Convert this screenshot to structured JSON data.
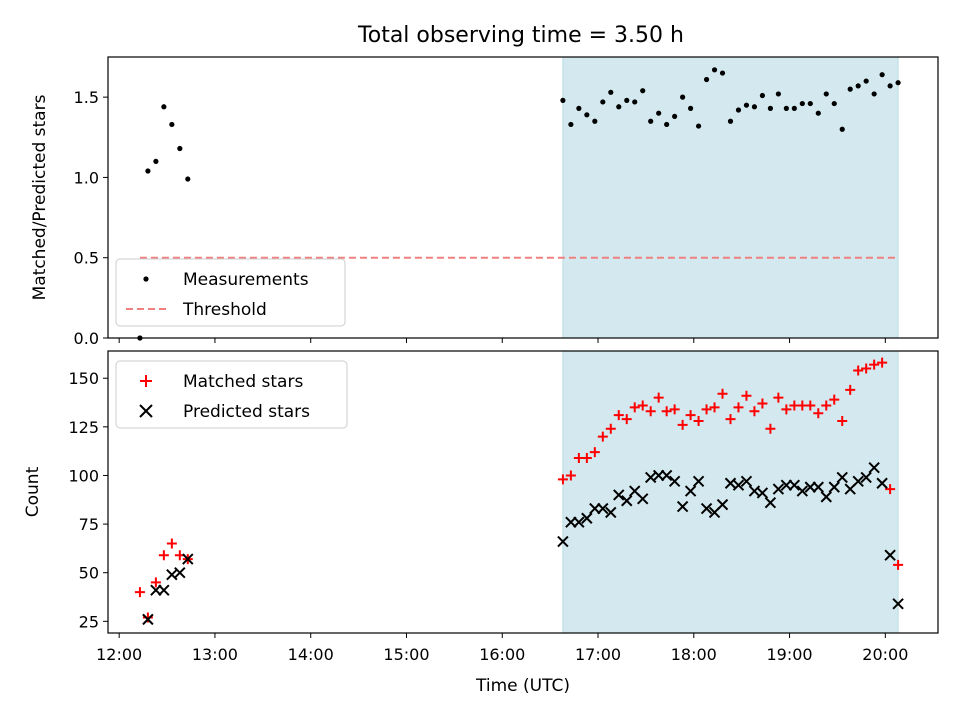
{
  "figure_title": "Total observing time = 3.50 h",
  "colors": {
    "shade": "#d3e9ef",
    "measure": "#000000",
    "threshold": "#f08080",
    "matched": "#ff0000",
    "predicted": "#000000"
  },
  "chart_data": [
    {
      "type": "scatter",
      "title": "Total observing time = 3.50 h",
      "xlabel": "",
      "ylabel": "Matched/Predicted stars",
      "xlim": [
        "11:53",
        "20:33"
      ],
      "ylim": [
        0,
        1.75
      ],
      "yticks": [
        "0.0",
        "0.5",
        "1.0",
        "1.5"
      ],
      "xticks": [
        "12:00",
        "13:00",
        "14:00",
        "15:00",
        "16:00",
        "17:00",
        "18:00",
        "19:00",
        "20:00"
      ],
      "tick_labels_visible_x": false,
      "shaded_interval": {
        "x": [
          "16:38",
          "20:08"
        ]
      },
      "legend": {
        "placement": "lower-left",
        "entries": [
          "Measurements",
          "Threshold"
        ]
      },
      "series": [
        {
          "name": "Measurements",
          "marker": "dot",
          "points": [
            {
              "x": "12:13",
              "y": 0.0
            },
            {
              "x": "12:18",
              "y": 1.04
            },
            {
              "x": "12:23",
              "y": 1.1
            },
            {
              "x": "12:28",
              "y": 1.44
            },
            {
              "x": "12:33",
              "y": 1.33
            },
            {
              "x": "12:38",
              "y": 1.18
            },
            {
              "x": "12:43",
              "y": 0.99
            },
            {
              "x": "16:38",
              "y": 1.48
            },
            {
              "x": "16:43",
              "y": 1.33
            },
            {
              "x": "16:48",
              "y": 1.43
            },
            {
              "x": "16:53",
              "y": 1.39
            },
            {
              "x": "16:58",
              "y": 1.35
            },
            {
              "x": "17:03",
              "y": 1.47
            },
            {
              "x": "17:08",
              "y": 1.53
            },
            {
              "x": "17:13",
              "y": 1.44
            },
            {
              "x": "17:18",
              "y": 1.48
            },
            {
              "x": "17:23",
              "y": 1.47
            },
            {
              "x": "17:28",
              "y": 1.54
            },
            {
              "x": "17:33",
              "y": 1.35
            },
            {
              "x": "17:38",
              "y": 1.4
            },
            {
              "x": "17:43",
              "y": 1.33
            },
            {
              "x": "17:48",
              "y": 1.38
            },
            {
              "x": "17:53",
              "y": 1.5
            },
            {
              "x": "17:58",
              "y": 1.43
            },
            {
              "x": "18:03",
              "y": 1.32
            },
            {
              "x": "18:08",
              "y": 1.61
            },
            {
              "x": "18:13",
              "y": 1.67
            },
            {
              "x": "18:18",
              "y": 1.65
            },
            {
              "x": "18:23",
              "y": 1.35
            },
            {
              "x": "18:28",
              "y": 1.42
            },
            {
              "x": "18:33",
              "y": 1.45
            },
            {
              "x": "18:38",
              "y": 1.44
            },
            {
              "x": "18:43",
              "y": 1.51
            },
            {
              "x": "18:48",
              "y": 1.43
            },
            {
              "x": "18:53",
              "y": 1.52
            },
            {
              "x": "18:58",
              "y": 1.43
            },
            {
              "x": "19:03",
              "y": 1.43
            },
            {
              "x": "19:08",
              "y": 1.46
            },
            {
              "x": "19:13",
              "y": 1.46
            },
            {
              "x": "19:18",
              "y": 1.4
            },
            {
              "x": "19:23",
              "y": 1.52
            },
            {
              "x": "19:28",
              "y": 1.46
            },
            {
              "x": "19:33",
              "y": 1.3
            },
            {
              "x": "19:38",
              "y": 1.55
            },
            {
              "x": "19:43",
              "y": 1.57
            },
            {
              "x": "19:48",
              "y": 1.6
            },
            {
              "x": "19:53",
              "y": 1.52
            },
            {
              "x": "19:58",
              "y": 1.64
            },
            {
              "x": "20:03",
              "y": 1.57
            },
            {
              "x": "20:08",
              "y": 1.59
            }
          ]
        },
        {
          "name": "Threshold",
          "type": "line",
          "style": "dashed",
          "points": [
            {
              "x": "12:13",
              "y": 0.5
            },
            {
              "x": "20:08",
              "y": 0.5
            }
          ]
        }
      ]
    },
    {
      "type": "scatter",
      "xlabel": "Time (UTC)",
      "ylabel": "Count",
      "xlim": [
        "11:53",
        "20:33"
      ],
      "ylim": [
        19,
        164
      ],
      "yticks": [
        "25",
        "50",
        "75",
        "100",
        "125",
        "150"
      ],
      "xticks": [
        "12:00",
        "13:00",
        "14:00",
        "15:00",
        "16:00",
        "17:00",
        "18:00",
        "19:00",
        "20:00"
      ],
      "shaded_interval": {
        "x": [
          "16:38",
          "20:08"
        ]
      },
      "legend": {
        "placement": "upper-left",
        "entries": [
          "Matched stars",
          "Predicted stars"
        ]
      },
      "series": [
        {
          "name": "Matched stars",
          "marker": "plus",
          "points": [
            {
              "x": "12:13",
              "y": 40
            },
            {
              "x": "12:18",
              "y": 27
            },
            {
              "x": "12:23",
              "y": 45
            },
            {
              "x": "12:28",
              "y": 59
            },
            {
              "x": "12:33",
              "y": 65
            },
            {
              "x": "12:38",
              "y": 59
            },
            {
              "x": "12:43",
              "y": 57
            },
            {
              "x": "16:38",
              "y": 98
            },
            {
              "x": "16:43",
              "y": 100
            },
            {
              "x": "16:48",
              "y": 109
            },
            {
              "x": "16:53",
              "y": 109
            },
            {
              "x": "16:58",
              "y": 112
            },
            {
              "x": "17:03",
              "y": 120
            },
            {
              "x": "17:08",
              "y": 124
            },
            {
              "x": "17:13",
              "y": 131
            },
            {
              "x": "17:18",
              "y": 129
            },
            {
              "x": "17:23",
              "y": 135
            },
            {
              "x": "17:28",
              "y": 136
            },
            {
              "x": "17:33",
              "y": 133
            },
            {
              "x": "17:38",
              "y": 140
            },
            {
              "x": "17:43",
              "y": 133
            },
            {
              "x": "17:48",
              "y": 134
            },
            {
              "x": "17:53",
              "y": 126
            },
            {
              "x": "17:58",
              "y": 131
            },
            {
              "x": "18:03",
              "y": 128
            },
            {
              "x": "18:08",
              "y": 134
            },
            {
              "x": "18:13",
              "y": 135
            },
            {
              "x": "18:18",
              "y": 142
            },
            {
              "x": "18:23",
              "y": 129
            },
            {
              "x": "18:28",
              "y": 135
            },
            {
              "x": "18:33",
              "y": 141
            },
            {
              "x": "18:38",
              "y": 133
            },
            {
              "x": "18:43",
              "y": 137
            },
            {
              "x": "18:48",
              "y": 124
            },
            {
              "x": "18:53",
              "y": 140
            },
            {
              "x": "18:58",
              "y": 134
            },
            {
              "x": "19:03",
              "y": 136
            },
            {
              "x": "19:08",
              "y": 136
            },
            {
              "x": "19:13",
              "y": 136
            },
            {
              "x": "19:18",
              "y": 132
            },
            {
              "x": "19:23",
              "y": 136
            },
            {
              "x": "19:28",
              "y": 139
            },
            {
              "x": "19:33",
              "y": 128
            },
            {
              "x": "19:38",
              "y": 144
            },
            {
              "x": "19:43",
              "y": 154
            },
            {
              "x": "19:48",
              "y": 155
            },
            {
              "x": "19:53",
              "y": 157
            },
            {
              "x": "19:58",
              "y": 158
            },
            {
              "x": "20:03",
              "y": 93
            },
            {
              "x": "20:08",
              "y": 54
            }
          ]
        },
        {
          "name": "Predicted stars",
          "marker": "x",
          "points": [
            {
              "x": "12:18",
              "y": 26
            },
            {
              "x": "12:23",
              "y": 41
            },
            {
              "x": "12:28",
              "y": 41
            },
            {
              "x": "12:33",
              "y": 49
            },
            {
              "x": "12:38",
              "y": 50
            },
            {
              "x": "12:43",
              "y": 57
            },
            {
              "x": "16:38",
              "y": 66
            },
            {
              "x": "16:43",
              "y": 76
            },
            {
              "x": "16:48",
              "y": 76
            },
            {
              "x": "16:53",
              "y": 78
            },
            {
              "x": "16:58",
              "y": 83
            },
            {
              "x": "17:03",
              "y": 83
            },
            {
              "x": "17:08",
              "y": 81
            },
            {
              "x": "17:13",
              "y": 90
            },
            {
              "x": "17:18",
              "y": 87
            },
            {
              "x": "17:23",
              "y": 92
            },
            {
              "x": "17:28",
              "y": 88
            },
            {
              "x": "17:33",
              "y": 99
            },
            {
              "x": "17:38",
              "y": 100
            },
            {
              "x": "17:43",
              "y": 100
            },
            {
              "x": "17:48",
              "y": 97
            },
            {
              "x": "17:53",
              "y": 84
            },
            {
              "x": "17:58",
              "y": 92
            },
            {
              "x": "18:03",
              "y": 97
            },
            {
              "x": "18:08",
              "y": 83
            },
            {
              "x": "18:13",
              "y": 81
            },
            {
              "x": "18:18",
              "y": 85
            },
            {
              "x": "18:23",
              "y": 96
            },
            {
              "x": "18:28",
              "y": 95
            },
            {
              "x": "18:33",
              "y": 97
            },
            {
              "x": "18:38",
              "y": 92
            },
            {
              "x": "18:43",
              "y": 91
            },
            {
              "x": "18:48",
              "y": 86
            },
            {
              "x": "18:53",
              "y": 93
            },
            {
              "x": "18:58",
              "y": 95
            },
            {
              "x": "19:03",
              "y": 95
            },
            {
              "x": "19:08",
              "y": 92
            },
            {
              "x": "19:13",
              "y": 94
            },
            {
              "x": "19:18",
              "y": 94
            },
            {
              "x": "19:23",
              "y": 89
            },
            {
              "x": "19:28",
              "y": 94
            },
            {
              "x": "19:33",
              "y": 99
            },
            {
              "x": "19:38",
              "y": 93
            },
            {
              "x": "19:43",
              "y": 97
            },
            {
              "x": "19:48",
              "y": 99
            },
            {
              "x": "19:53",
              "y": 104
            },
            {
              "x": "19:58",
              "y": 96
            },
            {
              "x": "20:03",
              "y": 59
            },
            {
              "x": "20:08",
              "y": 34
            }
          ]
        }
      ]
    }
  ]
}
